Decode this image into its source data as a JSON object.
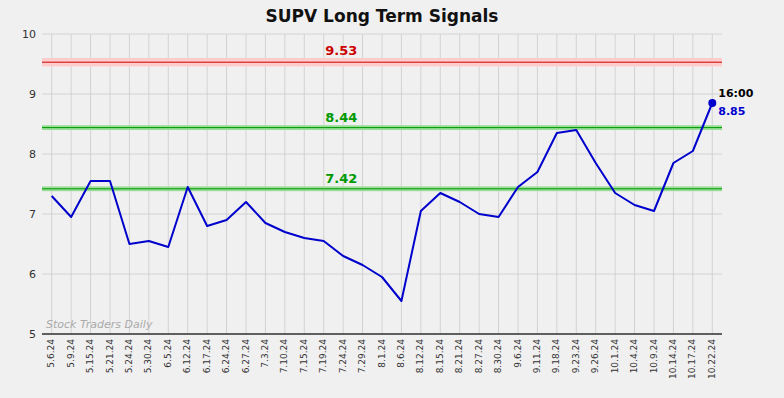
{
  "chart_data": {
    "type": "line",
    "title": "SUPV Long Term Signals",
    "categories": [
      "5.6.24",
      "5.9.24",
      "5.15.24",
      "5.21.24",
      "5.24.24",
      "5.30.24",
      "6.5.24",
      "6.12.24",
      "6.17.24",
      "6.24.24",
      "6.27.24",
      "7.3.24",
      "7.10.24",
      "7.15.24",
      "7.19.24",
      "7.24.24",
      "7.29.24",
      "8.1.24",
      "8.6.24",
      "8.12.24",
      "8.15.24",
      "8.21.24",
      "8.27.24",
      "8.30.24",
      "9.6.24",
      "9.11.24",
      "9.18.24",
      "9.23.24",
      "9.26.24",
      "10.1.24",
      "10.4.24",
      "10.9.24",
      "10.14.24",
      "10.17.24",
      "10.22.24"
    ],
    "values": [
      7.3,
      6.95,
      7.55,
      7.55,
      6.5,
      6.55,
      6.45,
      7.45,
      6.8,
      6.9,
      7.2,
      6.85,
      6.7,
      6.6,
      6.55,
      6.3,
      6.15,
      5.95,
      5.55,
      7.05,
      7.35,
      7.2,
      7.0,
      6.95,
      7.45,
      7.7,
      8.35,
      8.4,
      7.85,
      7.35,
      7.15,
      7.05,
      7.85,
      8.05,
      8.85
    ],
    "color": "#0000cc",
    "ylim": [
      5.0,
      10.0
    ],
    "yticks": [
      5,
      6,
      7,
      8,
      9,
      10
    ],
    "grid": true,
    "reference_lines": [
      {
        "value": 9.53,
        "label": "9.53",
        "color": "#cc0000",
        "band": [
          9.46,
          9.6
        ],
        "band_color": "#ffcccc"
      },
      {
        "value": 8.44,
        "label": "8.44",
        "color": "#009900",
        "band": [
          8.4,
          8.48
        ],
        "band_color": "#99dd99"
      },
      {
        "value": 7.42,
        "label": "7.42",
        "color": "#009900",
        "band": [
          7.38,
          7.46
        ],
        "band_color": "#99dd99"
      }
    ],
    "annotations": [
      {
        "text": "16:00",
        "category": "10.22.24"
      },
      {
        "text": "8.85",
        "category": "10.22.24"
      }
    ],
    "watermark": "Stock Traders Daily"
  }
}
